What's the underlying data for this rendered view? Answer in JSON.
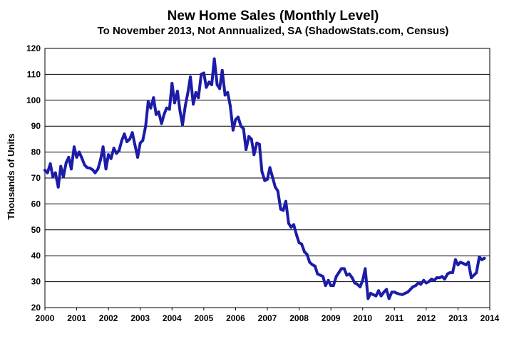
{
  "chart_data": {
    "type": "line",
    "title": "New Home Sales (Monthly Level)",
    "subtitle": "To November 2013, Not Annnualized, SA (ShadowStats.com, Census)",
    "ylabel": "Thousands of Units",
    "xlabel": "",
    "xlim": [
      2000,
      2014
    ],
    "ylim": [
      20,
      120
    ],
    "x_ticks": [
      "2000",
      "2001",
      "2002",
      "2003",
      "2004",
      "2005",
      "2006",
      "2007",
      "2008",
      "2009",
      "2010",
      "2011",
      "2012",
      "2013",
      "2014"
    ],
    "y_ticks": [
      "20",
      "30",
      "40",
      "50",
      "60",
      "70",
      "80",
      "90",
      "100",
      "110",
      "120"
    ],
    "grid": "horizontal",
    "legend": "none",
    "colors": {
      "series": "#1c1ca8",
      "grid": "#000000"
    },
    "series": [
      {
        "x": [
          2000.0,
          2000.08,
          2000.17,
          2000.25,
          2000.33,
          2000.42,
          2000.5,
          2000.58,
          2000.67,
          2000.75,
          2000.83,
          2000.92,
          2001.0,
          2001.08,
          2001.17,
          2001.25,
          2001.33,
          2001.42,
          2001.5,
          2001.58,
          2001.67,
          2001.75,
          2001.83,
          2001.92,
          2002.0,
          2002.08,
          2002.17,
          2002.25,
          2002.33,
          2002.42,
          2002.5,
          2002.58,
          2002.67,
          2002.75,
          2002.83,
          2002.92,
          2003.0,
          2003.08,
          2003.17,
          2003.25,
          2003.33,
          2003.42,
          2003.5,
          2003.58,
          2003.67,
          2003.75,
          2003.83,
          2003.92,
          2004.0,
          2004.08,
          2004.17,
          2004.25,
          2004.33,
          2004.42,
          2004.5,
          2004.58,
          2004.67,
          2004.75,
          2004.83,
          2004.92,
          2005.0,
          2005.08,
          2005.17,
          2005.25,
          2005.33,
          2005.42,
          2005.5,
          2005.58,
          2005.67,
          2005.75,
          2005.83,
          2005.92,
          2006.0,
          2006.08,
          2006.17,
          2006.25,
          2006.33,
          2006.42,
          2006.5,
          2006.58,
          2006.67,
          2006.75,
          2006.83,
          2006.92,
          2007.0,
          2007.08,
          2007.17,
          2007.25,
          2007.33,
          2007.42,
          2007.5,
          2007.58,
          2007.67,
          2007.75,
          2007.83,
          2007.92,
          2008.0,
          2008.08,
          2008.17,
          2008.25,
          2008.33,
          2008.42,
          2008.5,
          2008.58,
          2008.67,
          2008.75,
          2008.83,
          2008.92,
          2009.0,
          2009.08,
          2009.17,
          2009.25,
          2009.33,
          2009.42,
          2009.5,
          2009.58,
          2009.67,
          2009.75,
          2009.83,
          2009.92,
          2010.0,
          2010.08,
          2010.17,
          2010.25,
          2010.33,
          2010.42,
          2010.5,
          2010.58,
          2010.67,
          2010.75,
          2010.83,
          2010.92,
          2011.0,
          2011.08,
          2011.17,
          2011.25,
          2011.33,
          2011.42,
          2011.5,
          2011.58,
          2011.67,
          2011.75,
          2011.83,
          2011.92,
          2012.0,
          2012.08,
          2012.17,
          2012.25,
          2012.33,
          2012.42,
          2012.5,
          2012.58,
          2012.67,
          2012.75,
          2012.83,
          2012.92,
          2013.0,
          2013.08,
          2013.17,
          2013.25,
          2013.33,
          2013.42,
          2013.5,
          2013.58,
          2013.67,
          2013.75,
          2013.83
        ],
        "values": [
          73,
          72,
          75.5,
          70.5,
          72,
          66.5,
          74.5,
          70.5,
          76,
          78,
          73.5,
          82,
          78,
          80,
          77.5,
          75,
          74,
          73.8,
          73.2,
          72,
          73.5,
          77,
          82,
          73.5,
          79,
          77.5,
          81.5,
          79.5,
          80.5,
          84.5,
          87,
          84,
          85,
          87.5,
          83,
          78,
          83.5,
          84.5,
          90,
          99.5,
          97,
          101,
          94.5,
          95.5,
          91,
          94.5,
          97,
          96.5,
          106.5,
          99,
          103.5,
          96,
          90.5,
          98,
          103,
          109,
          98.5,
          103,
          101,
          110,
          110.5,
          105,
          107,
          106,
          116,
          106,
          104.5,
          111.5,
          102,
          103,
          98,
          88.5,
          92.5,
          93.5,
          90,
          89,
          81,
          86,
          85,
          79,
          83.5,
          83,
          72.5,
          69,
          69.5,
          74,
          70,
          66.5,
          65,
          58,
          57.5,
          61,
          52.5,
          51,
          52,
          48,
          45,
          44.5,
          41.5,
          40.5,
          37.5,
          36.5,
          36,
          33,
          32.5,
          32,
          28.5,
          30.5,
          28.5,
          28.5,
          32,
          33.5,
          35,
          35,
          32.5,
          33,
          31.5,
          29.5,
          29,
          28,
          30.5,
          35,
          23.5,
          25.5,
          25,
          24.5,
          26.5,
          24.5,
          26,
          27,
          23.5,
          26,
          26,
          25.5,
          25.2,
          25,
          25.5,
          26,
          27,
          28,
          28.5,
          29.5,
          29,
          30.5,
          29.5,
          30,
          31,
          30.5,
          31.5,
          31.5,
          32,
          31,
          33,
          33.5,
          33.5,
          38.5,
          36.5,
          37.5,
          37,
          36.5,
          37.5,
          31.5,
          32.5,
          33.5,
          39.5,
          38.5,
          39
        ]
      }
    ]
  }
}
